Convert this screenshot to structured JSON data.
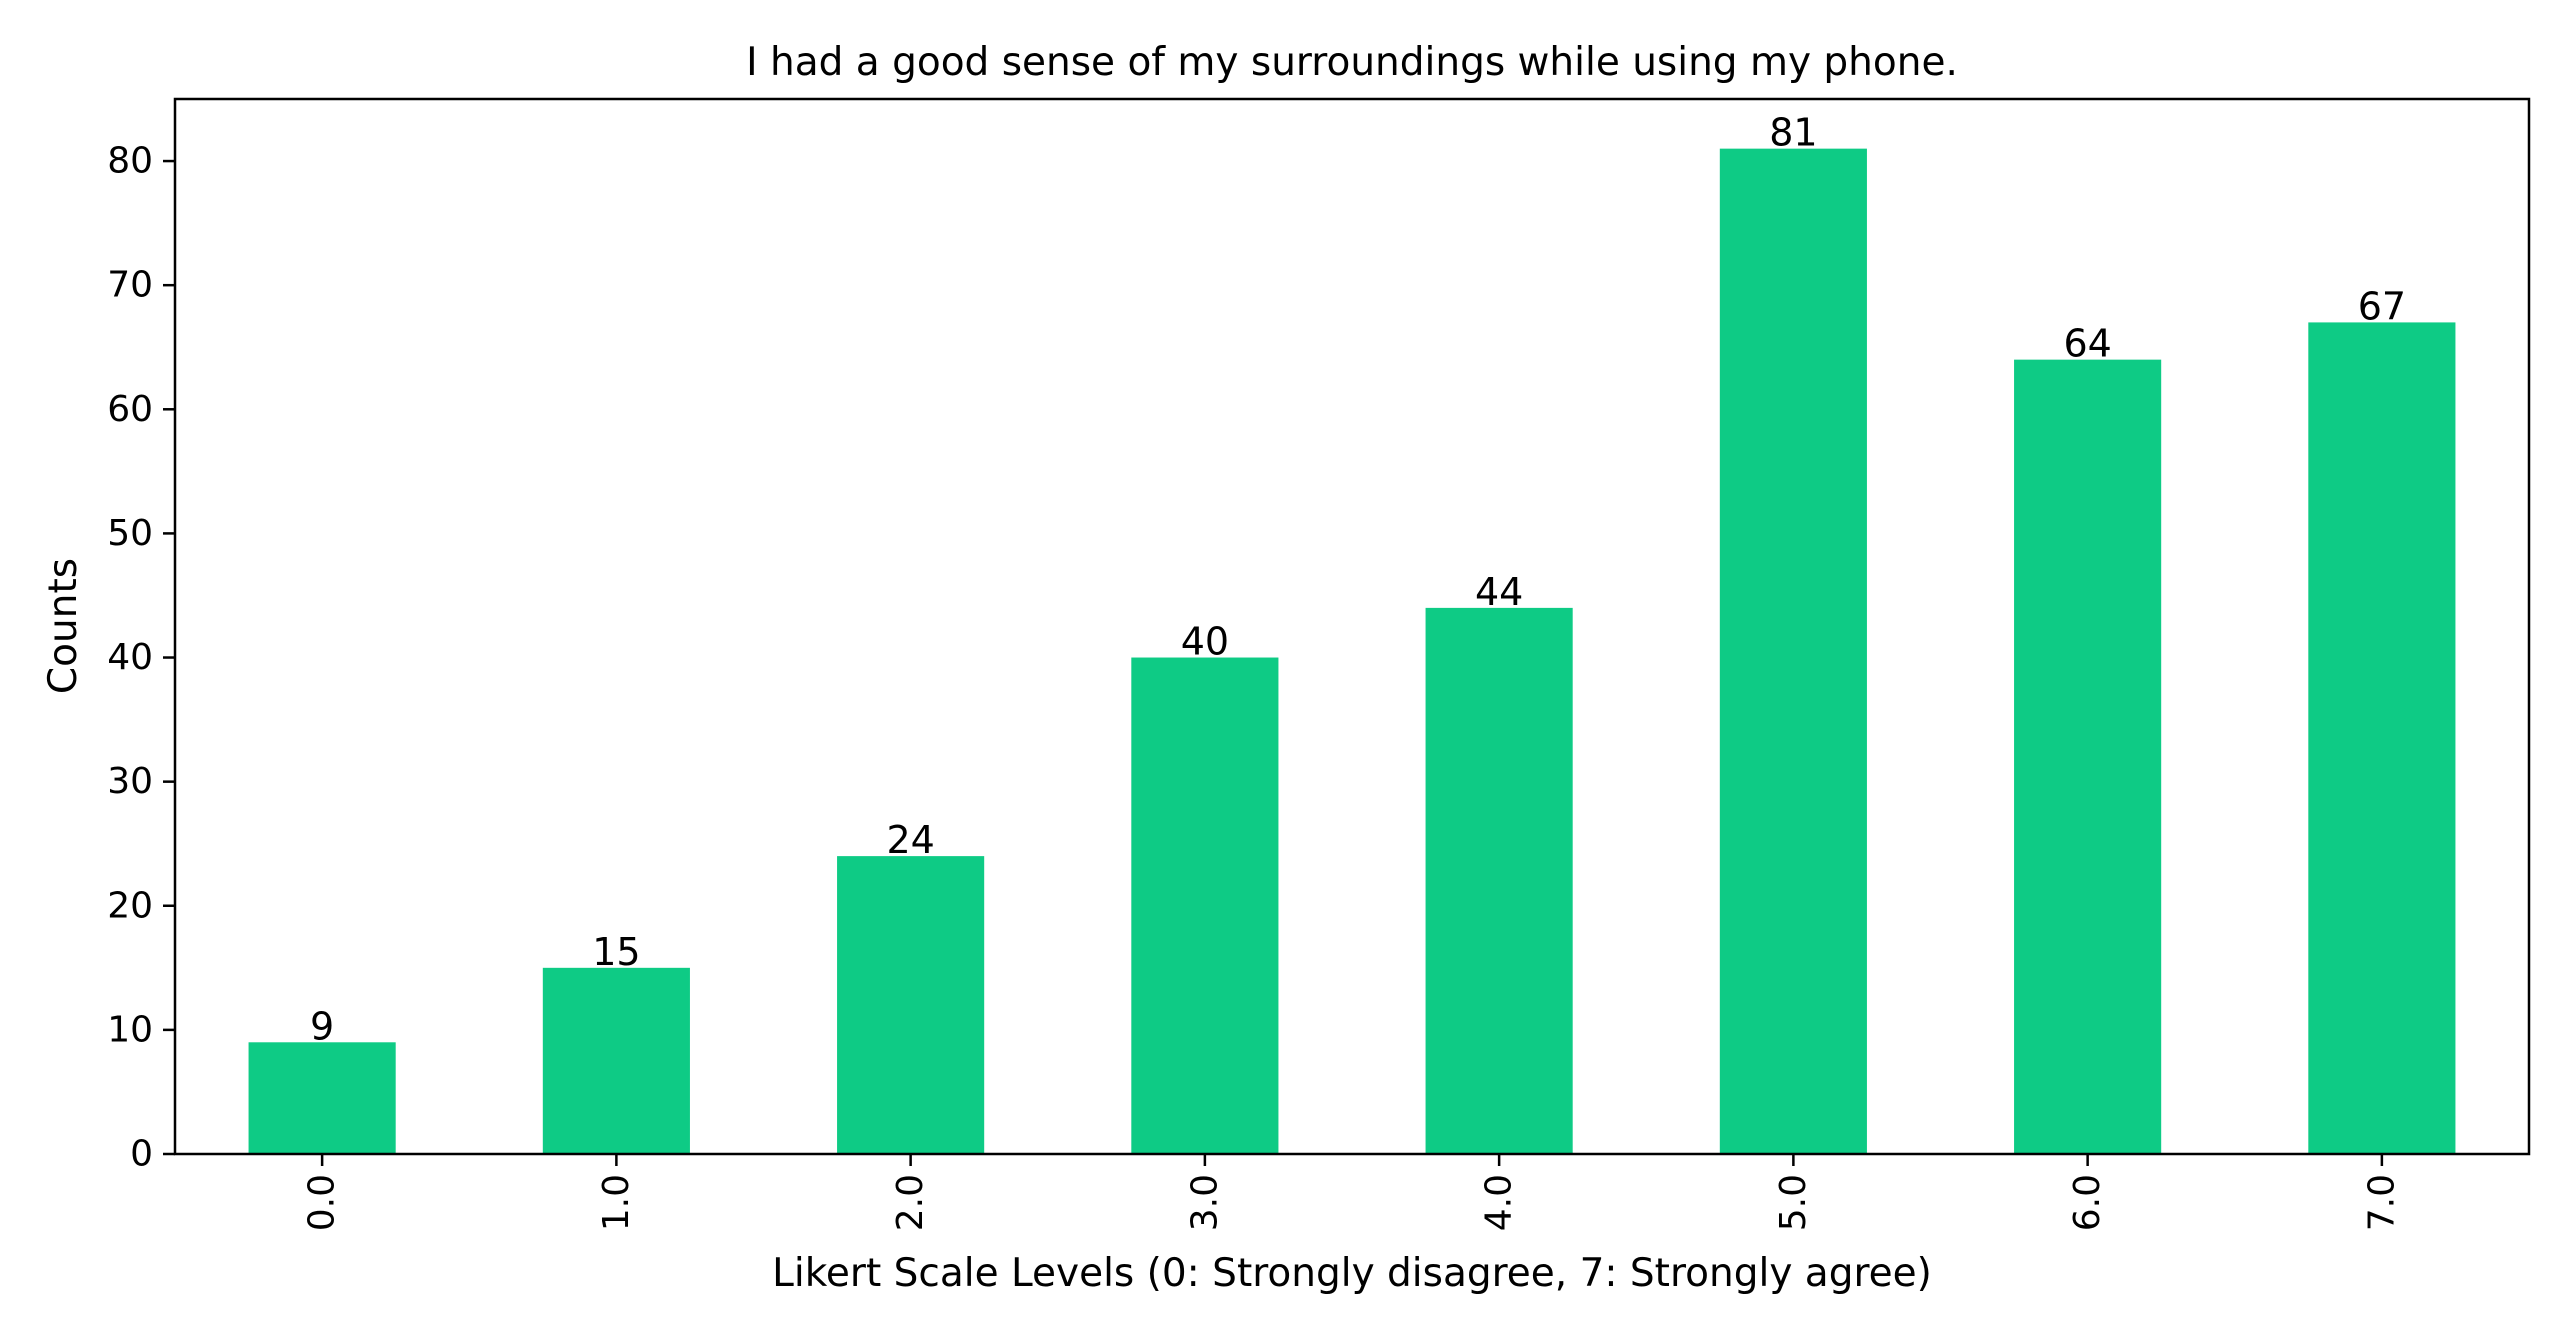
{
  "chart_data": {
    "type": "bar",
    "title": "I had a good sense of my surroundings while using my phone.",
    "xlabel": "Likert Scale Levels (0: Strongly disagree, 7: Strongly agree)",
    "ylabel": "Counts",
    "categories": [
      "0.0",
      "1.0",
      "2.0",
      "3.0",
      "4.0",
      "5.0",
      "6.0",
      "7.0"
    ],
    "values": [
      9,
      15,
      24,
      40,
      44,
      81,
      64,
      67
    ],
    "ylim": [
      0,
      85
    ],
    "yticks": [
      0,
      10,
      20,
      30,
      40,
      50,
      60,
      70,
      80
    ],
    "bar_color": "#0ecb85",
    "grid": false,
    "legend": "none"
  }
}
